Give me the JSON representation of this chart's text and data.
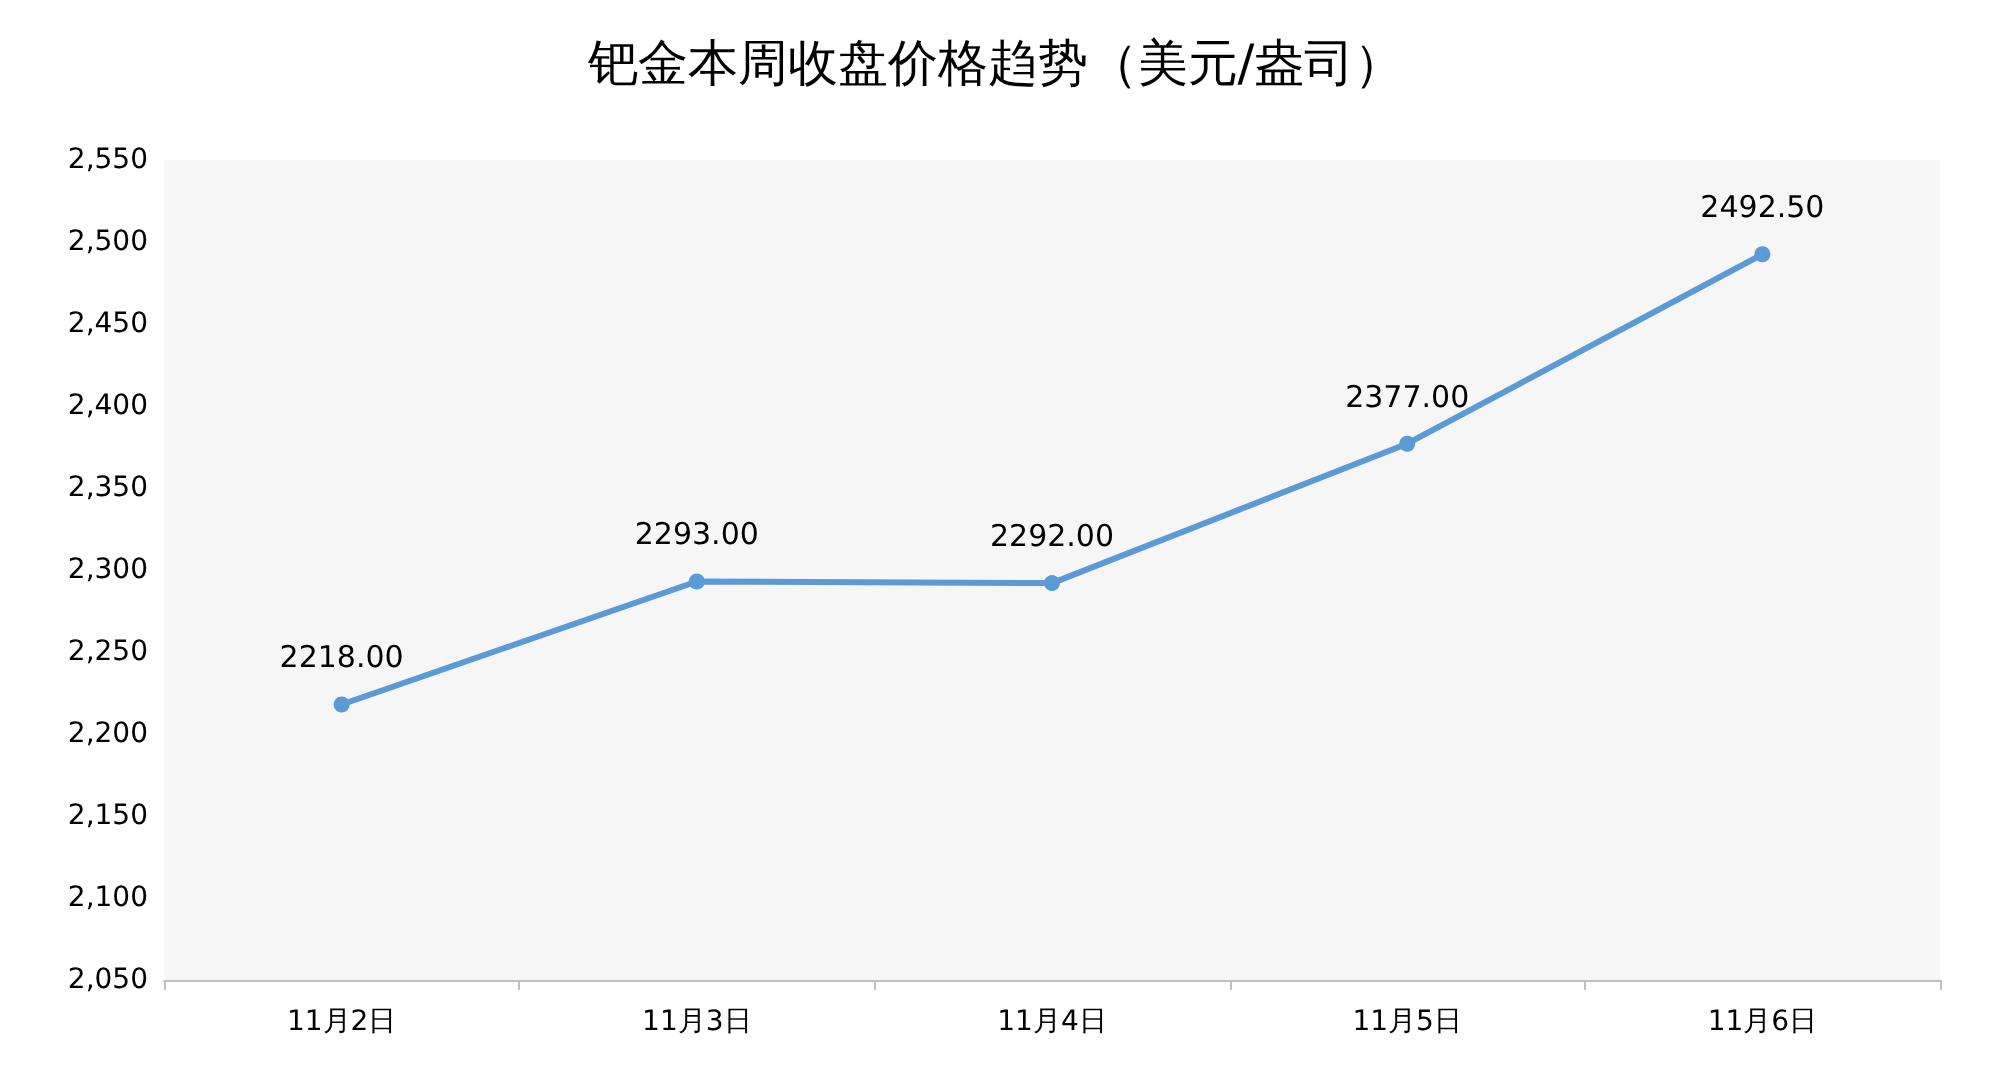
{
  "chart_data": {
    "type": "line",
    "title": "钯金本周收盘价格趋势（美元/盎司）",
    "categories": [
      "11月2日",
      "11月3日",
      "11月4日",
      "11月5日",
      "11月6日"
    ],
    "series": [
      {
        "color": "#5b9bd5",
        "values": [
          2218,
          2293,
          2292,
          2377,
          2492.5
        ],
        "value_labels": [
          "2218.00",
          "2293.00",
          "2292.00",
          "2377.00",
          "2492.50"
        ]
      }
    ],
    "ylim": [
      2050,
      2550
    ],
    "yticks": [
      {
        "value": 2050,
        "label": "2,050"
      },
      {
        "value": 2100,
        "label": "2,100"
      },
      {
        "value": 2150,
        "label": "2,150"
      },
      {
        "value": 2200,
        "label": "2,200"
      },
      {
        "value": 2250,
        "label": "2,250"
      },
      {
        "value": 2300,
        "label": "2,300"
      },
      {
        "value": 2350,
        "label": "2,350"
      },
      {
        "value": 2400,
        "label": "2,400"
      },
      {
        "value": 2450,
        "label": "2,450"
      },
      {
        "value": 2500,
        "label": "2,500"
      },
      {
        "value": 2550,
        "label": "2,550"
      }
    ],
    "marker": "circle",
    "line_style": "solid"
  }
}
